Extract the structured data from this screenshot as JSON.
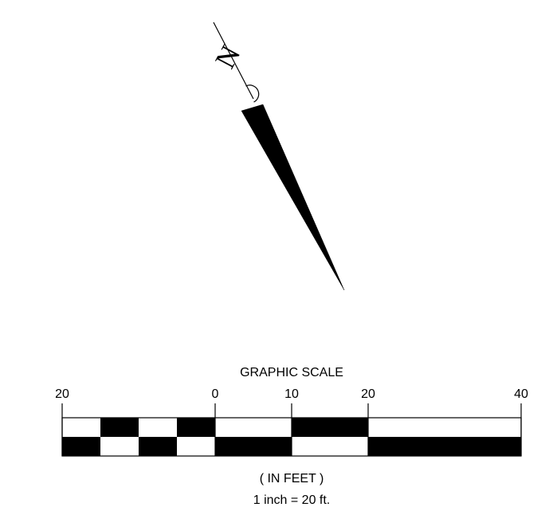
{
  "north_arrow": {
    "letter": "N"
  },
  "scale_bar": {
    "title": "GRAPHIC SCALE",
    "tick_labels": [
      "20",
      "0",
      "10",
      "20",
      "40"
    ],
    "units_label": "( IN FEET )",
    "ratio_label": "1 inch = 20 ft."
  },
  "colors": {
    "ink": "#000000",
    "paper": "#ffffff"
  }
}
